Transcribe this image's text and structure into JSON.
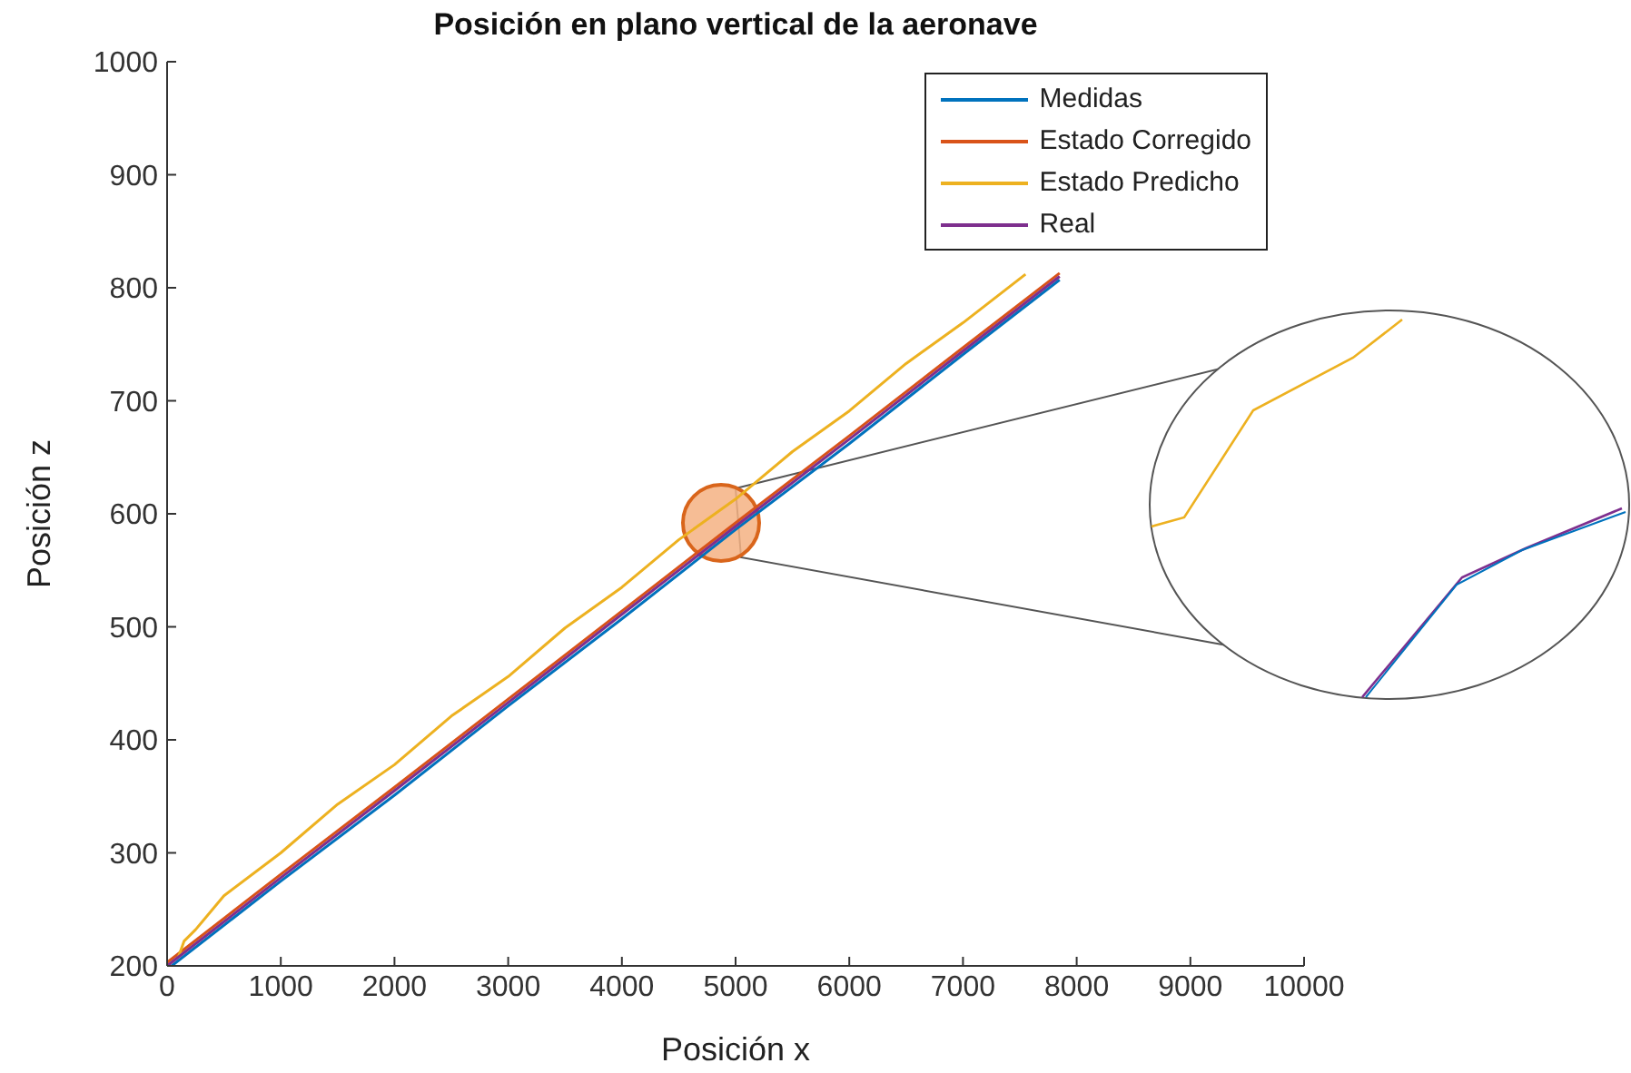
{
  "chart_data": {
    "type": "line",
    "title": "Posición en plano vertical de la aeronave",
    "xlabel": "Posición x",
    "ylabel": "Posición z",
    "xlim": [
      0,
      10000
    ],
    "xticks": [
      0,
      1000,
      2000,
      3000,
      4000,
      5000,
      6000,
      7000,
      8000,
      9000,
      10000
    ],
    "ylim": [
      200,
      1000
    ],
    "yticks": [
      200,
      300,
      400,
      500,
      600,
      700,
      800,
      900,
      1000
    ],
    "grid": false,
    "legend": "top right",
    "marker": "none",
    "line_style": "solid",
    "series": [
      {
        "name": "Medidas",
        "color": "#0072bd",
        "x": [
          40,
          1000,
          2000,
          3000,
          4000,
          5000,
          6000,
          7000,
          7850
        ],
        "values": [
          200,
          275,
          351,
          430,
          507,
          586,
          662,
          741,
          807
        ]
      },
      {
        "name": "Estado Corregido",
        "color": "#d95319",
        "x": [
          0,
          1000,
          2000,
          3000,
          4000,
          5000,
          6000,
          7000,
          7850
        ],
        "values": [
          203,
          281,
          358,
          436,
          514,
          592,
          669,
          747,
          813
        ]
      },
      {
        "name": "Estado Predicho",
        "color": "#edb120",
        "x": [
          100,
          150,
          250,
          500,
          1000,
          1500,
          2000,
          2500,
          3000,
          3500,
          4000,
          4500,
          5000,
          5500,
          6000,
          6500,
          7000,
          7550
        ],
        "values": [
          208,
          222,
          232,
          262,
          300,
          343,
          378,
          421,
          456,
          499,
          535,
          577,
          613,
          655,
          691,
          733,
          769,
          812
        ]
      },
      {
        "name": "Real",
        "color": "#7e2f8e",
        "x": [
          0,
          1000,
          2000,
          3000,
          4000,
          5000,
          6000,
          7000,
          7850
        ],
        "values": [
          200,
          278,
          355,
          433,
          511,
          589,
          666,
          744,
          810
        ]
      }
    ]
  }
}
